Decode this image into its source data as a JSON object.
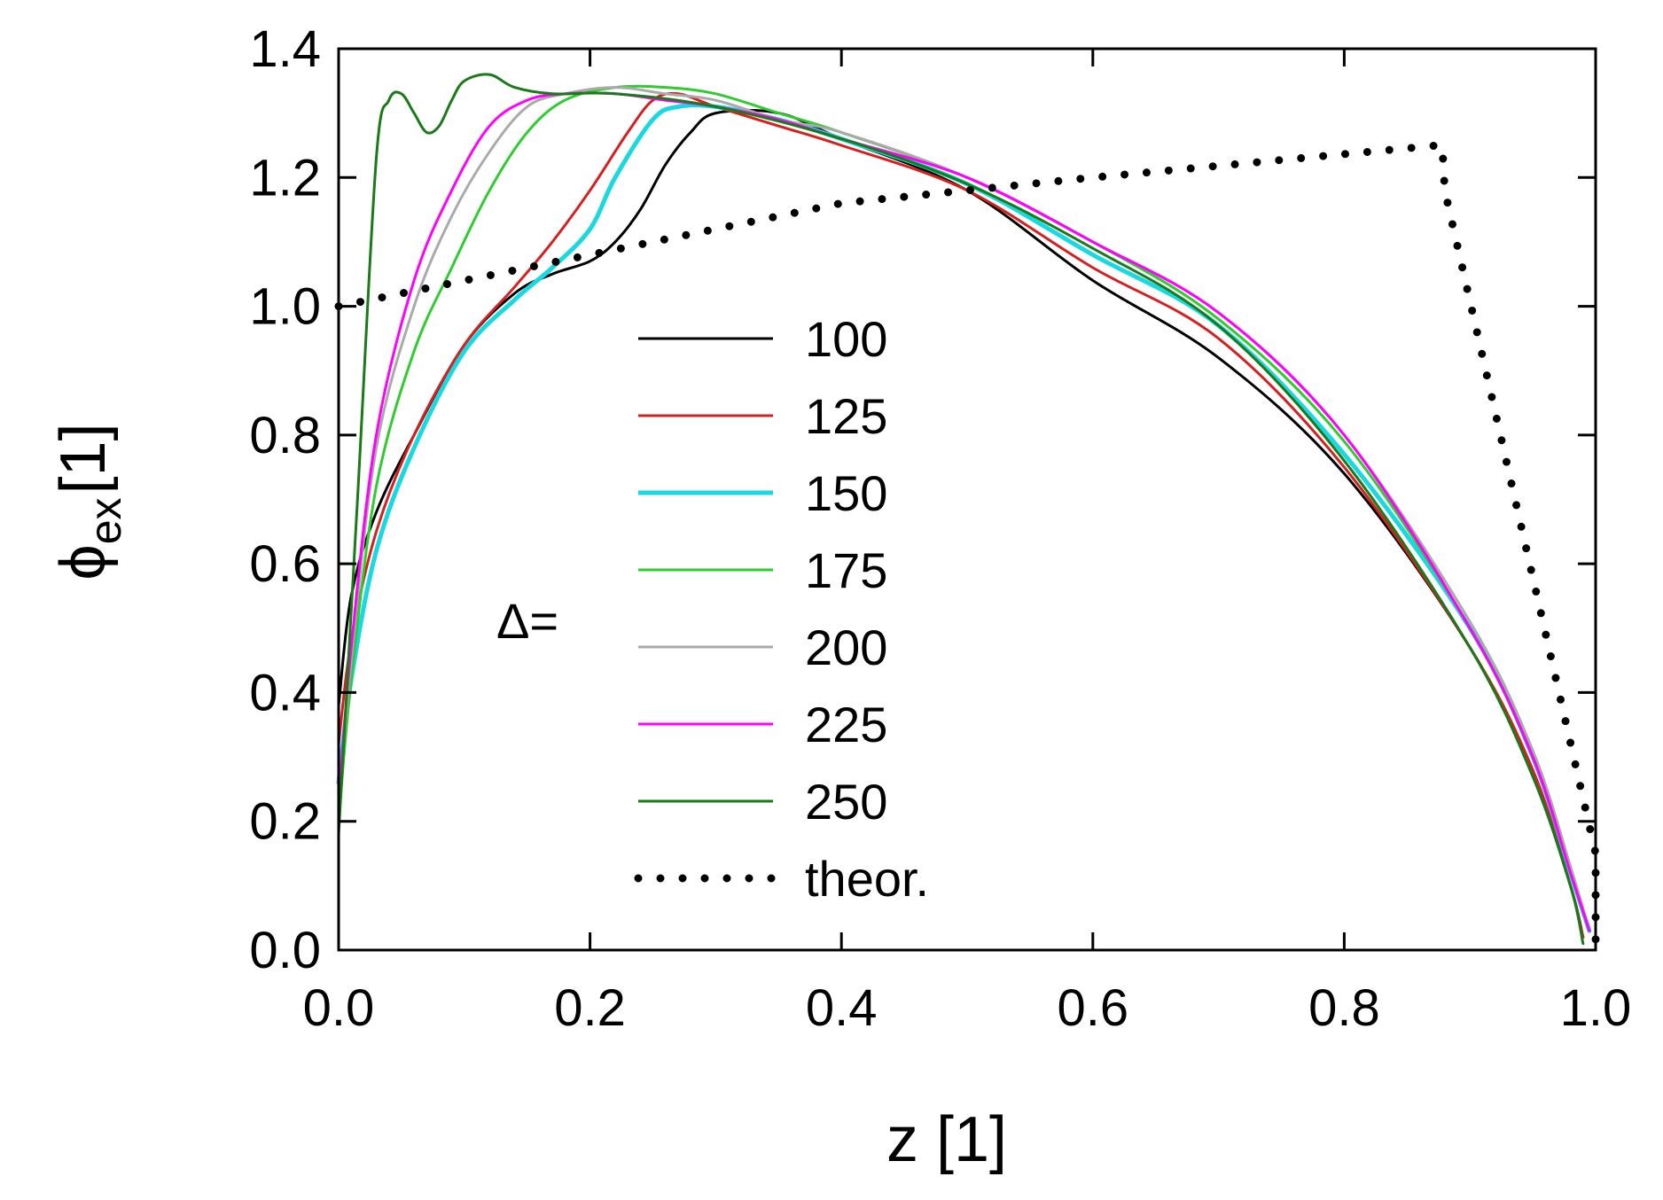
{
  "chart_data": {
    "type": "line",
    "title": "",
    "xlabel": "z [1]",
    "ylabel_symbol": "ϕ",
    "ylabel_sub": "ex",
    "ylabel_unit": "[1]",
    "xlim": [
      0,
      1
    ],
    "ylim": [
      0,
      1.4
    ],
    "xticks": [
      "0.0",
      "0.2",
      "0.4",
      "0.6",
      "0.8",
      "1.0"
    ],
    "yticks": [
      "0.0",
      "0.2",
      "0.4",
      "0.6",
      "0.8",
      "1.0",
      "1.2",
      "1.4"
    ],
    "grid": false,
    "legend_title": "Δ=",
    "legend_position": "center-left",
    "series": [
      {
        "name": "100",
        "color": "#000000",
        "width": 3,
        "style": "solid",
        "x": [
          0.0,
          0.01,
          0.03,
          0.06,
          0.1,
          0.14,
          0.17,
          0.2,
          0.22,
          0.24,
          0.26,
          0.28,
          0.3,
          0.35,
          0.4,
          0.5,
          0.6,
          0.7,
          0.8,
          0.9,
          0.95,
          0.98,
          0.99
        ],
        "y": [
          0.38,
          0.55,
          0.68,
          0.8,
          0.94,
          1.02,
          1.05,
          1.07,
          1.1,
          1.15,
          1.22,
          1.27,
          1.3,
          1.3,
          1.26,
          1.18,
          1.04,
          0.92,
          0.74,
          0.47,
          0.27,
          0.1,
          0.02
        ]
      },
      {
        "name": "125",
        "color": "#d62020",
        "width": 3,
        "style": "solid",
        "x": [
          0.0,
          0.01,
          0.03,
          0.06,
          0.1,
          0.14,
          0.17,
          0.2,
          0.23,
          0.25,
          0.27,
          0.3,
          0.35,
          0.4,
          0.5,
          0.6,
          0.7,
          0.8,
          0.9,
          0.95,
          0.98,
          0.99
        ],
        "y": [
          0.32,
          0.48,
          0.65,
          0.8,
          0.94,
          1.03,
          1.1,
          1.18,
          1.27,
          1.32,
          1.33,
          1.31,
          1.28,
          1.25,
          1.18,
          1.06,
          0.95,
          0.75,
          0.47,
          0.28,
          0.1,
          0.02
        ]
      },
      {
        "name": "150",
        "color": "#1ad8e0",
        "width": 5,
        "style": "solid",
        "x": [
          0.0,
          0.01,
          0.03,
          0.06,
          0.1,
          0.14,
          0.17,
          0.2,
          0.22,
          0.25,
          0.27,
          0.3,
          0.35,
          0.4,
          0.5,
          0.6,
          0.7,
          0.8,
          0.9,
          0.95,
          0.98,
          0.995
        ],
        "y": [
          0.26,
          0.42,
          0.62,
          0.78,
          0.93,
          1.01,
          1.06,
          1.12,
          1.2,
          1.29,
          1.31,
          1.31,
          1.29,
          1.26,
          1.19,
          1.08,
          0.97,
          0.77,
          0.5,
          0.3,
          0.12,
          0.03
        ]
      },
      {
        "name": "175",
        "color": "#2ecc2e",
        "width": 3,
        "style": "solid",
        "x": [
          0.0,
          0.01,
          0.03,
          0.06,
          0.09,
          0.12,
          0.15,
          0.18,
          0.22,
          0.26,
          0.3,
          0.35,
          0.4,
          0.5,
          0.6,
          0.7,
          0.8,
          0.9,
          0.95,
          0.98,
          0.995
        ],
        "y": [
          0.2,
          0.42,
          0.72,
          0.93,
          1.06,
          1.18,
          1.27,
          1.32,
          1.34,
          1.34,
          1.33,
          1.3,
          1.27,
          1.2,
          1.1,
          0.98,
          0.79,
          0.5,
          0.3,
          0.12,
          0.03
        ]
      },
      {
        "name": "200",
        "color": "#aaaaaa",
        "width": 3,
        "style": "solid",
        "x": [
          0.0,
          0.01,
          0.03,
          0.06,
          0.09,
          0.12,
          0.15,
          0.18,
          0.22,
          0.26,
          0.3,
          0.35,
          0.4,
          0.5,
          0.6,
          0.7,
          0.8,
          0.9,
          0.95,
          0.98,
          0.995
        ],
        "y": [
          0.22,
          0.45,
          0.78,
          1.0,
          1.14,
          1.24,
          1.31,
          1.33,
          1.34,
          1.33,
          1.32,
          1.29,
          1.27,
          1.2,
          1.1,
          0.99,
          0.8,
          0.51,
          0.31,
          0.13,
          0.03
        ]
      },
      {
        "name": "225",
        "color": "#ff00ff",
        "width": 3,
        "style": "solid",
        "x": [
          0.0,
          0.01,
          0.03,
          0.06,
          0.09,
          0.12,
          0.15,
          0.18,
          0.22,
          0.26,
          0.3,
          0.35,
          0.4,
          0.5,
          0.6,
          0.7,
          0.8,
          0.9,
          0.95,
          0.98,
          0.995
        ],
        "y": [
          0.23,
          0.47,
          0.8,
          1.04,
          1.18,
          1.28,
          1.32,
          1.33,
          1.33,
          1.32,
          1.31,
          1.29,
          1.26,
          1.2,
          1.1,
          0.99,
          0.8,
          0.5,
          0.3,
          0.12,
          0.03
        ]
      },
      {
        "name": "250",
        "color": "#1a7a1a",
        "width": 3,
        "style": "solid",
        "x": [
          0.0,
          0.015,
          0.03,
          0.04,
          0.05,
          0.06,
          0.07,
          0.08,
          0.09,
          0.1,
          0.12,
          0.14,
          0.17,
          0.22,
          0.3,
          0.4,
          0.5,
          0.6,
          0.7,
          0.8,
          0.9,
          0.95,
          0.98,
          0.99
        ],
        "y": [
          0.18,
          0.7,
          1.23,
          1.32,
          1.33,
          1.3,
          1.27,
          1.28,
          1.32,
          1.35,
          1.36,
          1.34,
          1.33,
          1.33,
          1.31,
          1.26,
          1.19,
          1.09,
          0.97,
          0.76,
          0.47,
          0.27,
          0.1,
          0.01
        ]
      },
      {
        "name": "theor.",
        "color": "#000000",
        "width": 9,
        "style": "dotted",
        "x": [
          0.0,
          0.2,
          0.4,
          0.6,
          0.875,
          0.878,
          0.88,
          1.0,
          1.0
        ],
        "y": [
          1.0,
          1.08,
          1.16,
          1.2,
          1.25,
          1.25,
          1.18,
          0.15,
          0.0
        ]
      }
    ]
  }
}
